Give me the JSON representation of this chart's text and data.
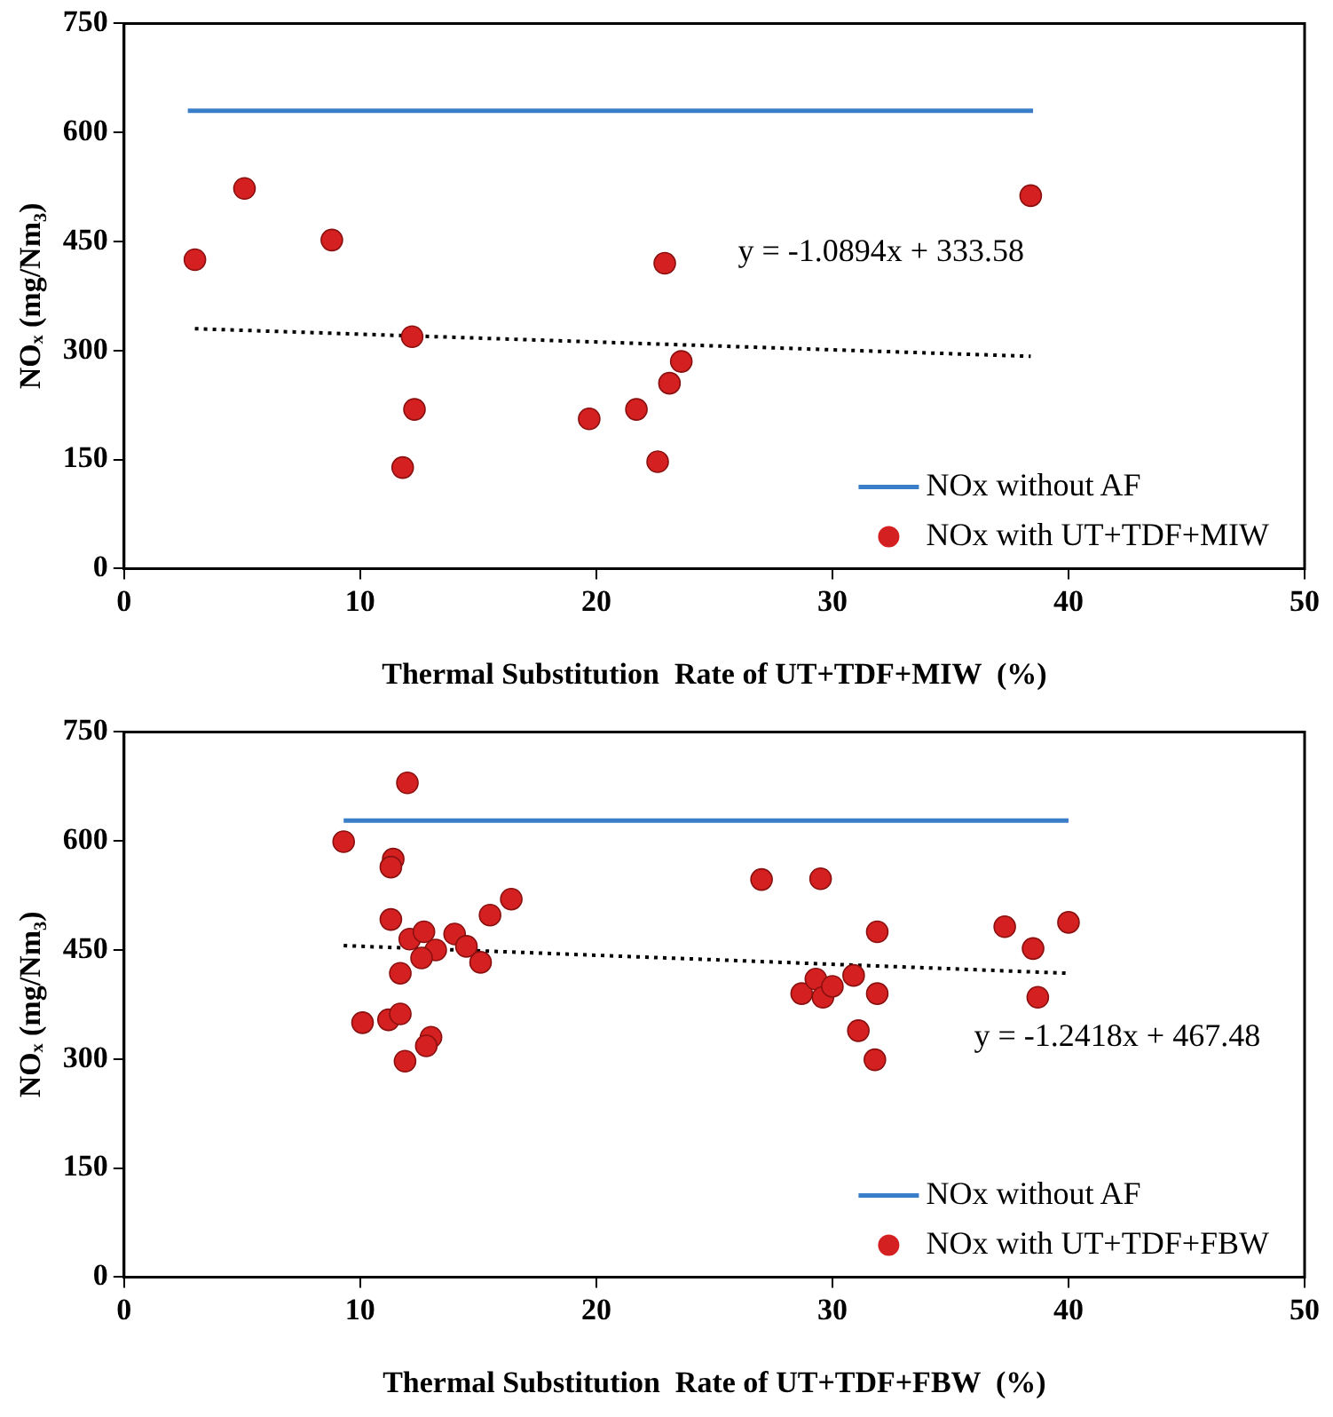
{
  "chart_data": [
    {
      "type": "scatter",
      "xlabel": "Thermal Substitution  Rate of UT+TDF+MIW  (%)",
      "ylabel": "NOₓ (mg/Nm₃)",
      "xlim": [
        0,
        50
      ],
      "xticks": [
        0,
        10,
        20,
        30,
        40,
        50
      ],
      "ylim": [
        0,
        750
      ],
      "yticks": [
        0,
        150,
        300,
        450,
        600,
        750
      ],
      "grid": false,
      "legend": "bottom right",
      "annotations": [
        "y = -1.0894x + 333.58"
      ],
      "series": [
        {
          "name": "NOx without AF",
          "type": "line",
          "color": "#3a7dc9",
          "x": [
            2.7,
            38.5
          ],
          "values": [
            630,
            630
          ]
        },
        {
          "name": "NOx with UT+TDF+MIW",
          "type": "scatter",
          "marker": "circle",
          "color": "#d42020",
          "x": [
            3.0,
            5.1,
            8.8,
            12.2,
            12.3,
            11.8,
            19.7,
            21.7,
            22.6,
            22.9,
            23.1,
            23.6,
            38.4
          ],
          "values": [
            425,
            523,
            452,
            319,
            219,
            139,
            206,
            219,
            147,
            420,
            255,
            285,
            513
          ]
        },
        {
          "type": "line",
          "color": "#000000",
          "line_style": "dotted",
          "x": [
            3.0,
            38.4
          ],
          "values": [
            330,
            292
          ]
        }
      ]
    },
    {
      "type": "scatter",
      "xlabel": "Thermal Substitution  Rate of UT+TDF+FBW  (%)",
      "ylabel": "NOₓ (mg/Nm₃)",
      "xlim": [
        0,
        50
      ],
      "xticks": [
        0,
        10,
        20,
        30,
        40,
        50
      ],
      "ylim": [
        0,
        750
      ],
      "yticks": [
        0,
        150,
        300,
        450,
        600,
        750
      ],
      "grid": false,
      "legend": "bottom right",
      "annotations": [
        "y = -1.2418x + 467.48"
      ],
      "series": [
        {
          "name": "NOx without AF",
          "type": "line",
          "color": "#3a7dc9",
          "x": [
            9.3,
            40.0
          ],
          "values": [
            628,
            628
          ]
        },
        {
          "name": "NOx with UT+TDF+FBW",
          "type": "scatter",
          "marker": "circle",
          "color": "#d42020",
          "x": [
            9.3,
            12.0,
            11.4,
            11.3,
            11.3,
            12.1,
            12.7,
            13.2,
            12.6,
            14.0,
            14.5,
            15.1,
            15.5,
            16.4,
            11.7,
            10.1,
            11.2,
            11.7,
            13.0,
            12.8,
            11.9,
            27.0,
            29.5,
            28.7,
            29.3,
            29.6,
            30.0,
            30.9,
            31.9,
            31.9,
            31.1,
            31.8,
            37.3,
            38.5,
            40.0,
            38.7
          ],
          "values": [
            599,
            680,
            575,
            564,
            492,
            465,
            475,
            450,
            439,
            472,
            455,
            433,
            498,
            520,
            418,
            350,
            354,
            362,
            330,
            318,
            297,
            547,
            548,
            390,
            410,
            385,
            400,
            415,
            475,
            390,
            339,
            299,
            482,
            452,
            488,
            385
          ]
        },
        {
          "type": "line",
          "color": "#000000",
          "line_style": "dotted",
          "x": [
            9.3,
            40.0
          ],
          "values": [
            456,
            418
          ]
        }
      ]
    }
  ]
}
